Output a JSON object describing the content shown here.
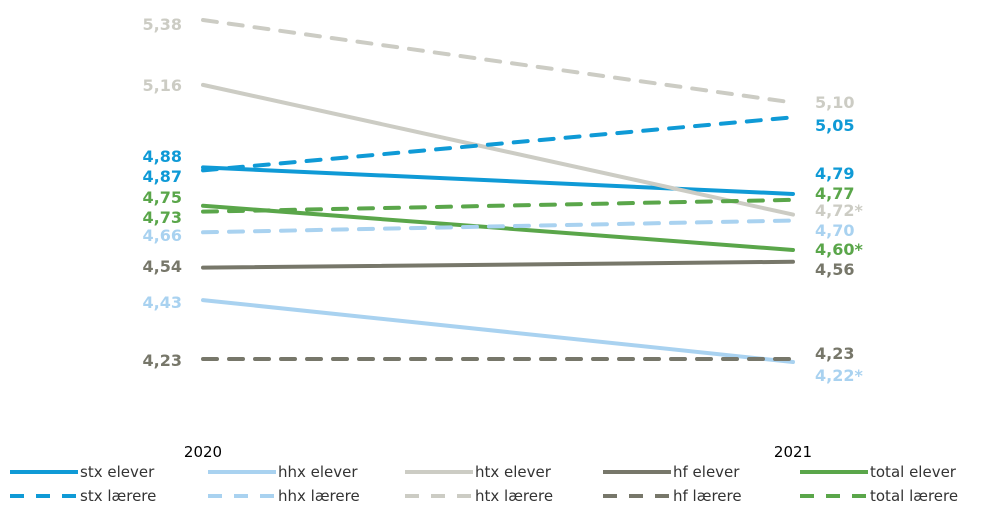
{
  "chart_data": {
    "type": "line",
    "x": [
      "2020",
      "2021"
    ],
    "ylim": [
      4.0,
      5.45
    ],
    "grid": false,
    "legend_position": "bottom",
    "series": [
      {
        "id": "stx-elever",
        "name": "stx elever",
        "style": "solid",
        "color": "#0f9ad6",
        "values": [
          4.88,
          4.79
        ],
        "labels": [
          "4,88",
          "4,79"
        ]
      },
      {
        "id": "hhx-elever",
        "name": "hhx elever",
        "style": "solid",
        "color": "#a9d2f0",
        "values": [
          4.43,
          4.22
        ],
        "labels": [
          "4,43",
          "4,22*"
        ]
      },
      {
        "id": "htx-elever",
        "name": "htx elever",
        "style": "solid",
        "color": "#ccccc4",
        "values": [
          5.16,
          4.72
        ],
        "labels": [
          "5,16",
          "4,72*"
        ]
      },
      {
        "id": "hf-elever",
        "name": "hf elever",
        "style": "solid",
        "color": "#77776a",
        "values": [
          4.54,
          4.56
        ],
        "labels": [
          "4,54",
          "4,56"
        ]
      },
      {
        "id": "total-elever",
        "name": "total elever",
        "style": "solid",
        "color": "#5aa64a",
        "values": [
          4.75,
          4.6
        ],
        "labels": [
          "4,75",
          "4,60*"
        ]
      },
      {
        "id": "stx-laerere",
        "name": "stx lærere",
        "style": "dashed",
        "color": "#0f9ad6",
        "values": [
          4.87,
          5.05
        ],
        "labels": [
          "4,87",
          "5,05"
        ]
      },
      {
        "id": "hhx-laerere",
        "name": "hhx lærere",
        "style": "dashed",
        "color": "#a9d2f0",
        "values": [
          4.66,
          4.7
        ],
        "labels": [
          "4,66",
          "4,70"
        ]
      },
      {
        "id": "htx-laerere",
        "name": "htx lærere",
        "style": "dashed",
        "color": "#ccccc4",
        "values": [
          5.38,
          5.1
        ],
        "labels": [
          "5,38",
          "5,10"
        ]
      },
      {
        "id": "hf-laerere",
        "name": "hf lærere",
        "style": "dashed",
        "color": "#77776a",
        "values": [
          4.23,
          4.23
        ],
        "labels": [
          "4,23",
          "4,23"
        ]
      },
      {
        "id": "total-laerere",
        "name": "total lærere",
        "style": "dashed",
        "color": "#5aa64a",
        "values": [
          4.73,
          4.77
        ],
        "labels": [
          "4,73",
          "4,77"
        ]
      }
    ]
  }
}
